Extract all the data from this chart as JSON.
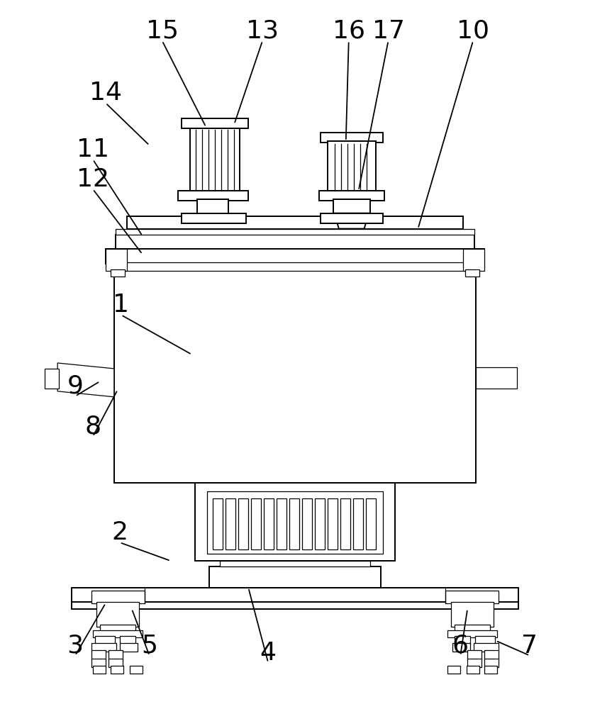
{
  "bg_color": "#ffffff",
  "lw": 1.4,
  "lw_thin": 0.9,
  "fig_width": 8.32,
  "fig_height": 10.0
}
